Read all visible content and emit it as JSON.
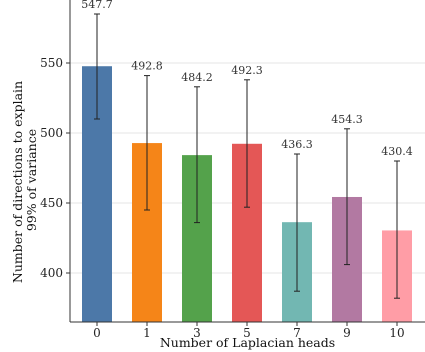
{
  "chart_data": {
    "type": "bar",
    "title": "",
    "xlabel": "Number of Laplacian heads",
    "ylabel_lines": [
      "Number of directions to explain",
      "99% of variance"
    ],
    "categories": [
      "0",
      "1",
      "3",
      "5",
      "7",
      "9",
      "10"
    ],
    "values": [
      547.7,
      492.8,
      484.2,
      492.3,
      436.3,
      454.3,
      430.4
    ],
    "value_labels": [
      "547.7",
      "492.8",
      "484.2",
      "492.3",
      "436.3",
      "454.3",
      "430.4"
    ],
    "error_low": [
      510,
      445,
      436,
      447,
      387,
      406,
      382
    ],
    "error_high": [
      585,
      541,
      533,
      538,
      485,
      503,
      480
    ],
    "colors": [
      "#4c78a8",
      "#f58518",
      "#54a24b",
      "#e45756",
      "#72b7b2",
      "#b279a2",
      "#ff9da6"
    ],
    "yticks": [
      400,
      450,
      500,
      550
    ],
    "ylim": [
      365,
      595
    ],
    "grid": true
  }
}
